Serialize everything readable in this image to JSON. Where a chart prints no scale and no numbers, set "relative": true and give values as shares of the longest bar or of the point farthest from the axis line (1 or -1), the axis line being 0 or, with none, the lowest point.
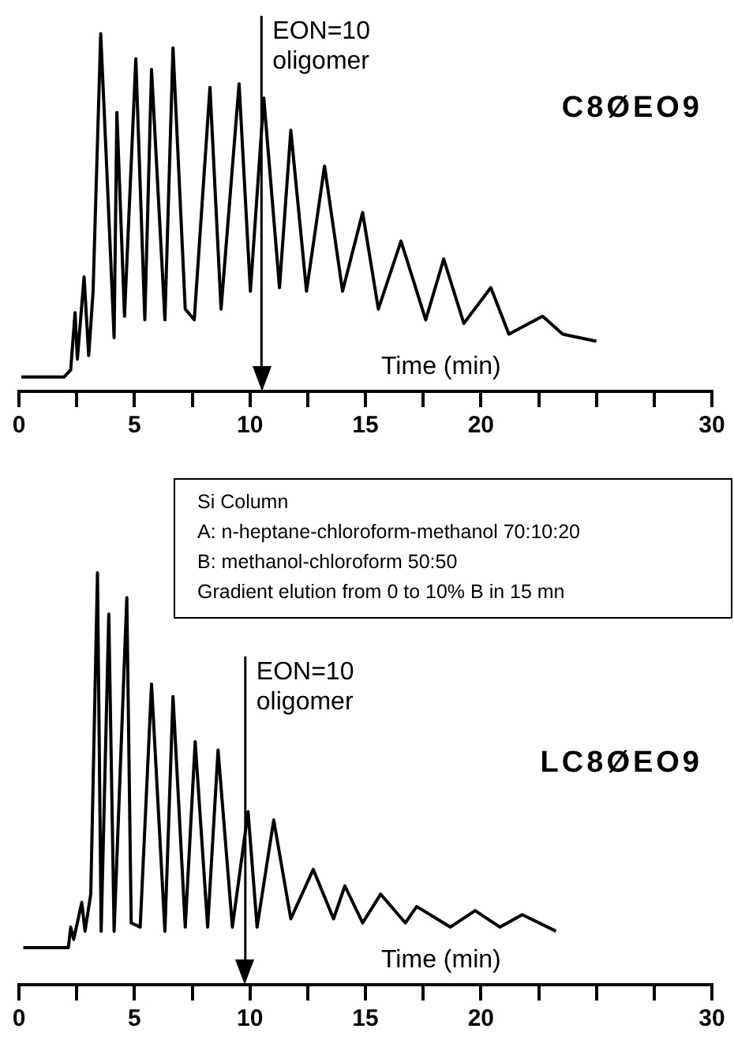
{
  "chart_data": [
    {
      "type": "line",
      "relative": true,
      "xlabel": "Time (min)",
      "xlim": [
        0,
        30
      ],
      "legend": false,
      "marker": "none",
      "line_style": "solid",
      "xticks": [
        0,
        {
          "value": 2.5,
          "label": null
        },
        5,
        {
          "value": 7.5,
          "label": null
        },
        10,
        {
          "value": 12.5,
          "label": null
        },
        15,
        {
          "value": 17.5,
          "label": null
        },
        20,
        {
          "value": 22.5,
          "label": null
        },
        {
          "value": 25,
          "label": null
        },
        {
          "value": 27.5,
          "label": null
        },
        30
      ],
      "annotations": [
        "C8ØEO9"
      ],
      "ref_lines": [
        {
          "axis": "x",
          "value": 10.5,
          "label": "EON=10\noligomer"
        }
      ],
      "series": [
        {
          "color": "#000000",
          "x": [
            0.1,
            1.95,
            2.24,
            2.43,
            2.53,
            2.82,
            3.02,
            3.21,
            3.31,
            3.54,
            3.79,
            4.12,
            4.24,
            4.57,
            5.06,
            5.45,
            5.74,
            6.32,
            6.67,
            7.2,
            7.59,
            8.27,
            8.75,
            9.53,
            10.02,
            10.6,
            11.28,
            11.77,
            12.45,
            13.23,
            14.01,
            14.88,
            15.56,
            16.54,
            17.61,
            18.39,
            19.26,
            20.43,
            21.21,
            22.67,
            23.54,
            25.0
          ],
          "values": [
            0.04,
            0.04,
            0.06,
            0.22,
            0.09,
            0.32,
            0.1,
            0.28,
            0.5,
            1.0,
            0.64,
            0.15,
            0.78,
            0.21,
            0.93,
            0.2,
            0.9,
            0.2,
            0.96,
            0.23,
            0.2,
            0.85,
            0.23,
            0.86,
            0.28,
            0.82,
            0.29,
            0.73,
            0.28,
            0.63,
            0.28,
            0.5,
            0.23,
            0.42,
            0.2,
            0.37,
            0.19,
            0.29,
            0.16,
            0.21,
            0.16,
            0.14
          ]
        }
      ]
    },
    {
      "type": "line",
      "relative": true,
      "xlabel": "Time (min)",
      "xlim": [
        0,
        30
      ],
      "legend": false,
      "marker": "none",
      "line_style": "solid",
      "xticks": [
        0,
        {
          "value": 2.5,
          "label": null
        },
        5,
        {
          "value": 7.5,
          "label": null
        },
        10,
        {
          "value": 12.5,
          "label": null
        },
        15,
        {
          "value": 17.5,
          "label": null
        },
        20,
        {
          "value": 22.5,
          "label": null
        },
        {
          "value": 25,
          "label": null
        },
        {
          "value": 27.5,
          "label": null
        },
        30
      ],
      "annotations": [
        "LC8ØEO9",
        "Si Column",
        "A: n-heptane-chloroform-methanol  70:10:20",
        "B: methanol-chloroform 50:50",
        "Gradient elution from 0 to 10% B in 15 mn"
      ],
      "ref_lines": [
        {
          "axis": "x",
          "value": 9.8,
          "label": "EON=10\noligomer"
        }
      ],
      "series": [
        {
          "color": "#000000",
          "x": [
            0.19,
            2.14,
            2.24,
            2.37,
            2.72,
            2.86,
            3.11,
            3.4,
            3.56,
            3.89,
            4.12,
            4.67,
            4.86,
            5.25,
            5.74,
            6.32,
            6.67,
            7.2,
            7.63,
            8.17,
            8.62,
            9.24,
            9.92,
            10.31,
            11.03,
            11.77,
            12.74,
            13.62,
            14.11,
            14.88,
            15.66,
            16.73,
            17.22,
            18.68,
            19.75,
            20.82,
            21.79,
            23.25
          ],
          "values": [
            0.09,
            0.09,
            0.14,
            0.11,
            0.2,
            0.13,
            0.22,
            1.0,
            0.13,
            0.9,
            0.13,
            0.94,
            0.15,
            0.14,
            0.73,
            0.13,
            0.7,
            0.14,
            0.59,
            0.14,
            0.57,
            0.14,
            0.42,
            0.14,
            0.4,
            0.16,
            0.28,
            0.16,
            0.24,
            0.15,
            0.22,
            0.15,
            0.19,
            0.14,
            0.18,
            0.14,
            0.17,
            0.13
          ]
        }
      ]
    }
  ]
}
